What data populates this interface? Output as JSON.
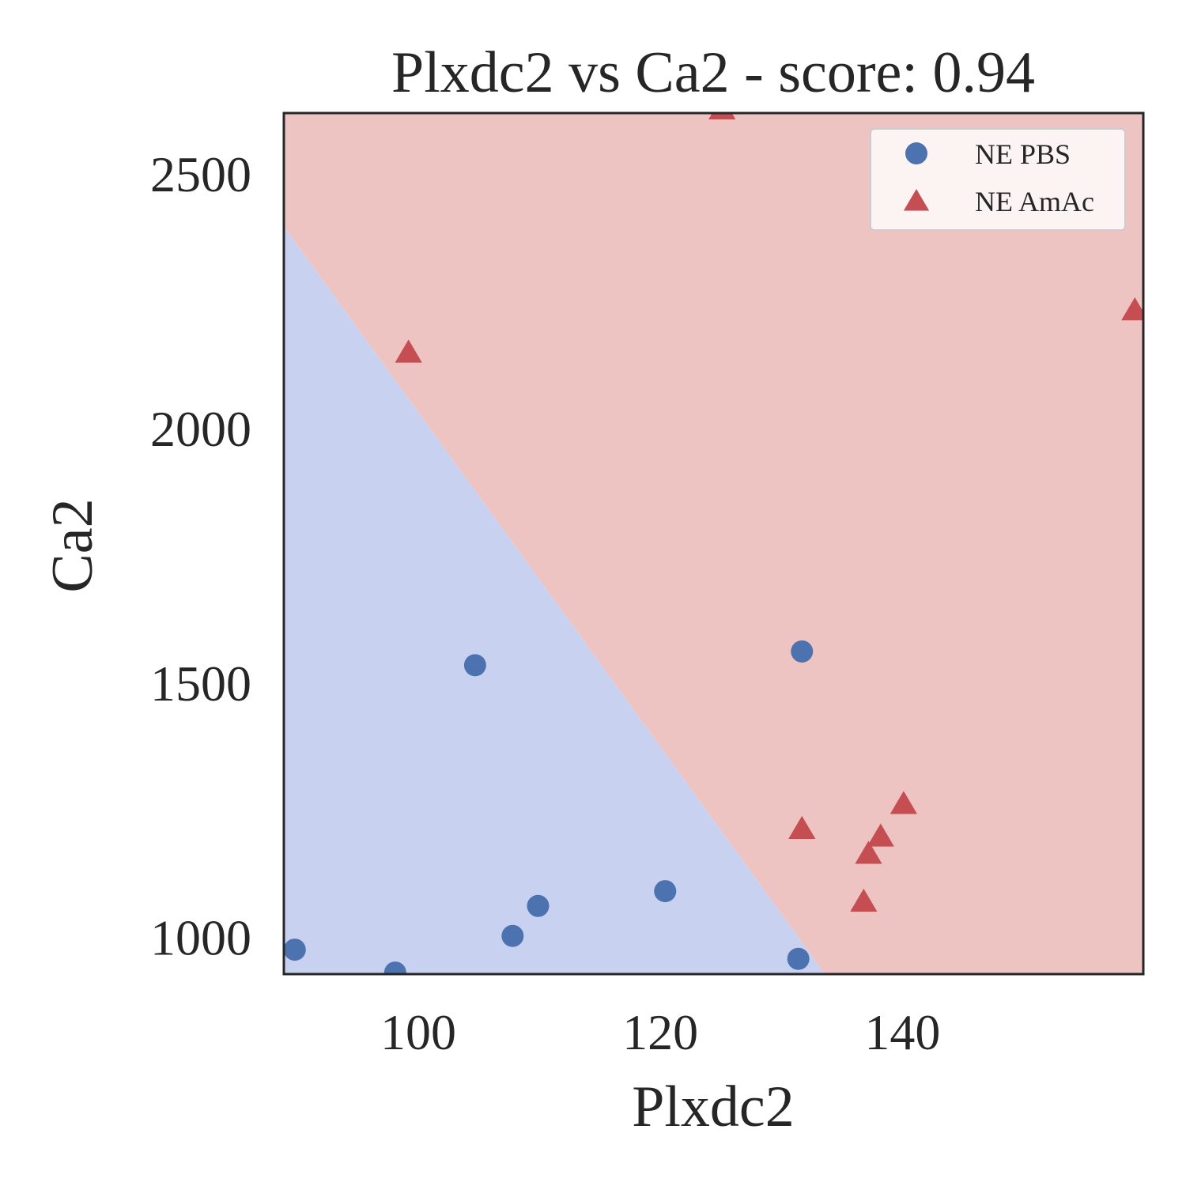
{
  "chart_data": {
    "type": "scatter",
    "title": "Plxdc2 vs Ca2 - score: 0.94",
    "xlabel": "Plxdc2",
    "ylabel": "Ca2",
    "xlim": [
      88.9,
      159.9
    ],
    "ylim": [
      928,
      2620
    ],
    "x_ticks": [
      100,
      120,
      140
    ],
    "y_ticks": [
      1000,
      1500,
      2000,
      2500
    ],
    "grid": false,
    "legend_position": "top-right",
    "decision_boundary": {
      "points": [
        [
          88.9,
          2397
        ],
        [
          133.6,
          928
        ]
      ],
      "below_class": "NE PBS",
      "above_class": "NE AmAc",
      "below_color": "#c9d1f1",
      "above_color": "#eec4c3"
    },
    "series": [
      {
        "name": "NE PBS",
        "marker": "circle",
        "color": "#4c72b0",
        "points": [
          [
            89.8,
            976
          ],
          [
            98.1,
            931
          ],
          [
            104.7,
            1535
          ],
          [
            107.8,
            1003
          ],
          [
            109.9,
            1062
          ],
          [
            120.4,
            1091
          ],
          [
            131.4,
            958
          ],
          [
            131.7,
            1562
          ]
        ]
      },
      {
        "name": "NE AmAc",
        "marker": "triangle",
        "color": "#c44e52",
        "points": [
          [
            99.2,
            2147
          ],
          [
            125.1,
            2625
          ],
          [
            131.7,
            1211
          ],
          [
            136.8,
            1068
          ],
          [
            137.2,
            1162
          ],
          [
            138.2,
            1196
          ],
          [
            140.1,
            1260
          ],
          [
            159.2,
            2230
          ]
        ]
      }
    ]
  }
}
